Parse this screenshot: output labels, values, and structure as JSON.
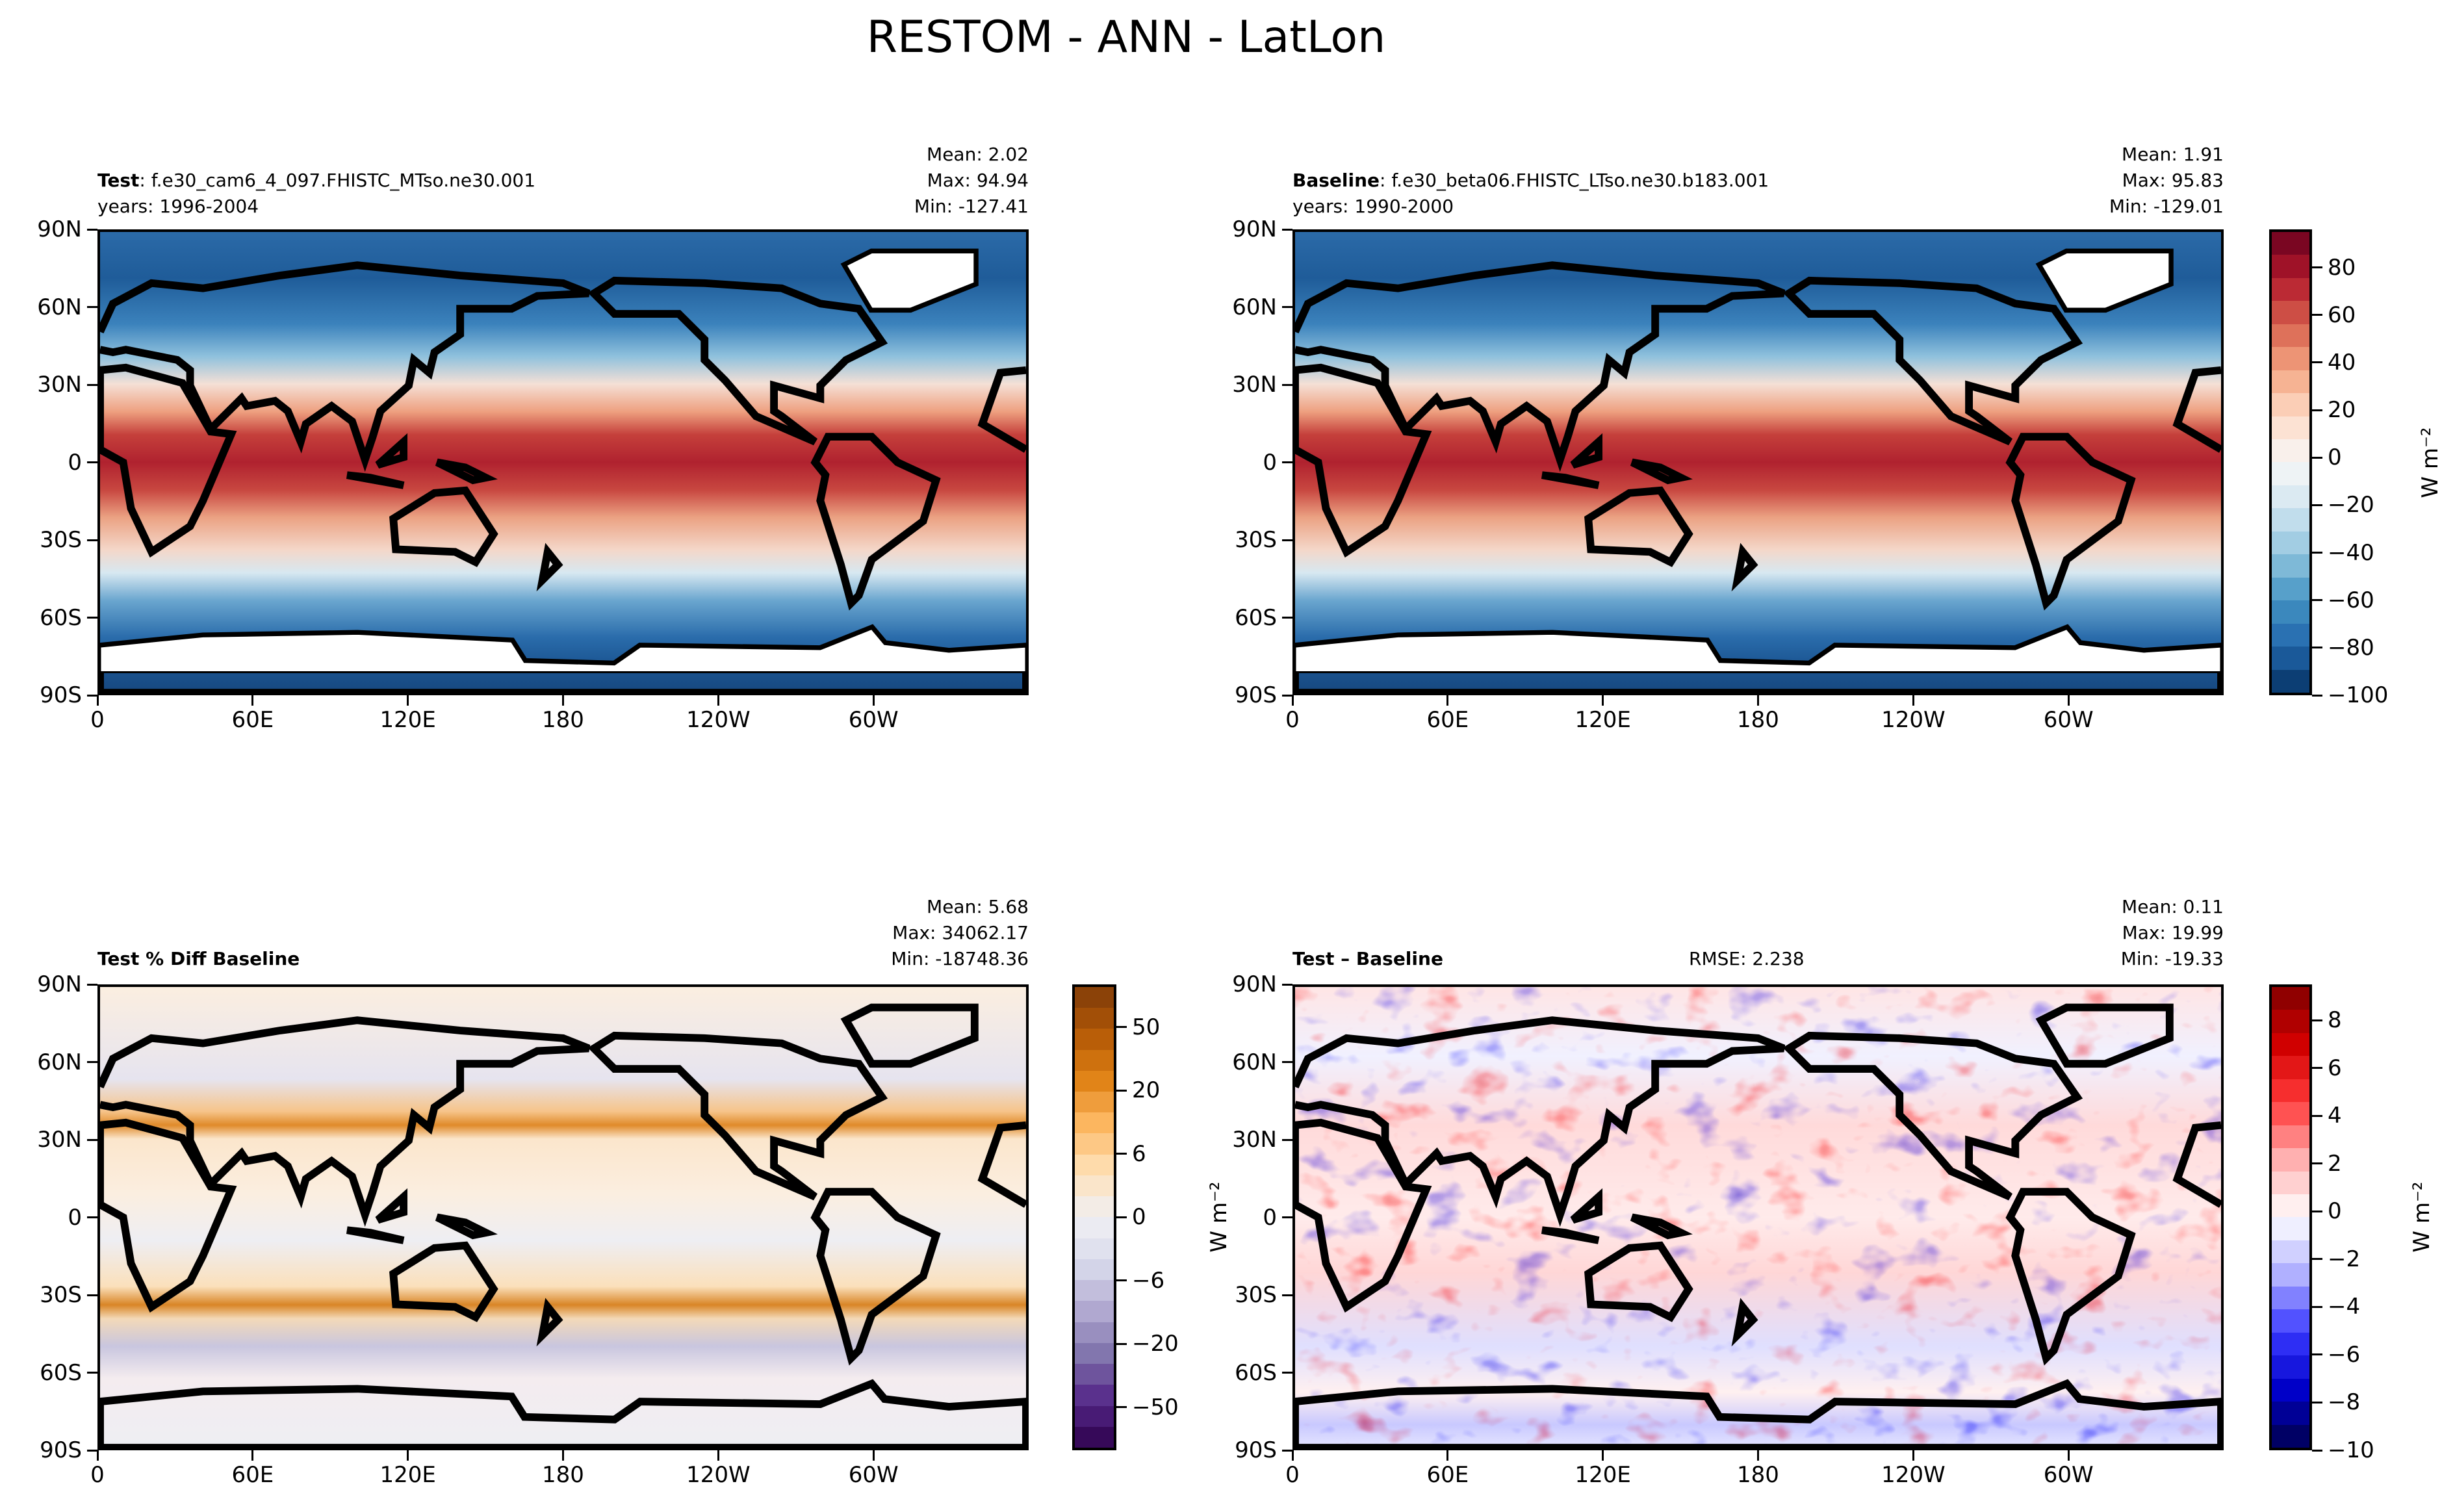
{
  "figure": {
    "title": "RESTOM - ANN - LatLon"
  },
  "panels": [
    {
      "label": "Test",
      "name": ": f.e30_cam6_4_097.FHISTC_MTso.ne30.001",
      "years": "years: 1996-2004",
      "mean": "Mean:  2.02",
      "max": "Max: 94.94",
      "min": "Min: -127.41",
      "rmse": ""
    },
    {
      "label": "Baseline",
      "name": ": f.e30_beta06.FHISTC_LTso.ne30.b183.001",
      "years": "years: 1990-2000",
      "mean": "Mean:  1.91",
      "max": "Max: 95.83",
      "min": "Min: -129.01",
      "rmse": ""
    },
    {
      "label": "Test % Diff Baseline",
      "name": "",
      "years": "",
      "mean": "Mean:  5.68",
      "max": "Max: 34062.17",
      "min": "Min: -18748.36",
      "rmse": ""
    },
    {
      "label": "Test – Baseline",
      "name": "",
      "years": "",
      "mean": "Mean:  0.11",
      "max": "Max: 19.99",
      "min": "Min: -19.33",
      "rmse": "RMSE: 2.238"
    }
  ],
  "axes": {
    "x_ticks": [
      "0",
      "60E",
      "120E",
      "180",
      "120W",
      "60W"
    ],
    "y_ticks": [
      "90N",
      "60N",
      "30N",
      "0",
      "30S",
      "60S",
      "90S"
    ]
  },
  "colorbars": [
    {
      "label": "W m⁻²",
      "ticks": [
        "80",
        "60",
        "40",
        "20",
        "0",
        "−20",
        "−40",
        "−60",
        "−80",
        "−100"
      ],
      "tick_values": [
        80,
        60,
        40,
        20,
        0,
        -20,
        -40,
        -60,
        -80,
        -100
      ],
      "range": [
        -100,
        96
      ],
      "bands": 20,
      "colors": [
        "#053061",
        "#2166ac",
        "#4393c3",
        "#92c5de",
        "#d1e5f0",
        "#f7f7f7",
        "#fddbc7",
        "#f4a582",
        "#d6604d",
        "#b2182b",
        "#67001f"
      ]
    },
    {
      "label": "W m⁻²",
      "ticks": [
        "50",
        "20",
        "6",
        "0",
        "−6",
        "−20",
        "−50"
      ],
      "tick_values": [
        50,
        20,
        6,
        0,
        -6,
        -20,
        -50
      ],
      "range": [
        -70,
        70
      ],
      "bands": 22,
      "colors": [
        "#2d004b",
        "#542788",
        "#8073ac",
        "#b2abd2",
        "#d8daeb",
        "#f0f0f4",
        "#fee0b6",
        "#fdb863",
        "#e08214",
        "#b35806",
        "#7f3b08"
      ]
    },
    {
      "label": "W m⁻²",
      "ticks": [
        "8",
        "6",
        "4",
        "2",
        "0",
        "−2",
        "−4",
        "−6",
        "−8",
        "−10"
      ],
      "tick_values": [
        8,
        6,
        4,
        2,
        0,
        -2,
        -4,
        -6,
        -8,
        -10
      ],
      "range": [
        -10,
        9.5
      ],
      "bands": 20,
      "colors": [
        "#00004c",
        "#0000c8",
        "#3a3aff",
        "#b0b0ff",
        "#ffffff",
        "#ffb0b0",
        "#ff3a3a",
        "#d00000",
        "#800000"
      ]
    }
  ],
  "chart_data": {
    "type": "heatmap",
    "title": "RESTOM - ANN - LatLon",
    "projection": "lat-lon (cylindrical)",
    "x_ticks": [
      "0",
      "60E",
      "120E",
      "180",
      "120W",
      "60W"
    ],
    "y_ticks": [
      "90N",
      "60N",
      "30N",
      "0",
      "30S",
      "60S",
      "90S"
    ],
    "panels": [
      {
        "name": "Test",
        "mean": 2.02,
        "max": 94.94,
        "min": -127.41,
        "units": "W m-2"
      },
      {
        "name": "Baseline",
        "mean": 1.91,
        "max": 95.83,
        "min": -129.01,
        "units": "W m-2"
      },
      {
        "name": "Test % Diff Baseline",
        "mean": 5.68,
        "max": 34062.17,
        "min": -18748.36
      },
      {
        "name": "Test - Baseline",
        "mean": 0.11,
        "max": 19.99,
        "min": -19.33,
        "rmse": 2.238,
        "units": "W m-2"
      }
    ]
  }
}
